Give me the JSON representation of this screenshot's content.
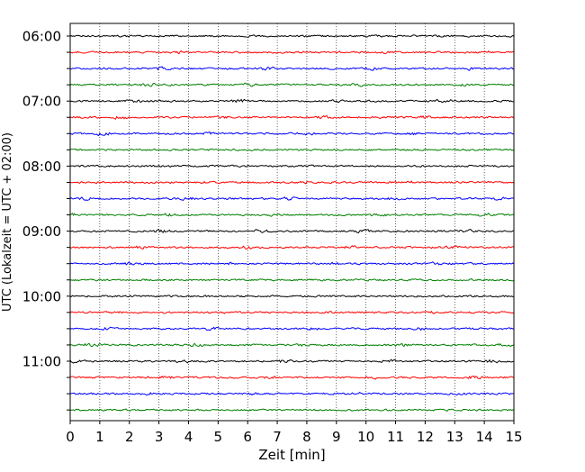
{
  "chart_data": {
    "type": "line",
    "subtype": "helicorder-seismogram",
    "xlabel": "Zeit  [min]",
    "ylabel": "UTC (Lokalzeit = UTC + 02:00)",
    "xlim": [
      0,
      15
    ],
    "x_ticks": [
      "0",
      "1",
      "2",
      "3",
      "4",
      "5",
      "6",
      "7",
      "8",
      "9",
      "10",
      "11",
      "12",
      "13",
      "14",
      "15"
    ],
    "y_tick_labels": [
      "06:00",
      "07:00",
      "08:00",
      "09:00",
      "10:00",
      "11:00"
    ],
    "trace_interval_minutes": 15,
    "trace_start_times": [
      "06:00",
      "06:15",
      "06:30",
      "06:45",
      "07:00",
      "07:15",
      "07:30",
      "07:45",
      "08:00",
      "08:15",
      "08:30",
      "08:45",
      "09:00",
      "09:15",
      "09:30",
      "09:45",
      "10:00",
      "10:15",
      "10:30",
      "10:45",
      "11:00",
      "11:15",
      "11:30",
      "11:45"
    ],
    "trace_color_cycle": [
      "#000000",
      "#ff0000",
      "#0000ff",
      "#008000"
    ],
    "vertical_grid": "dotted",
    "legend": "none"
  }
}
